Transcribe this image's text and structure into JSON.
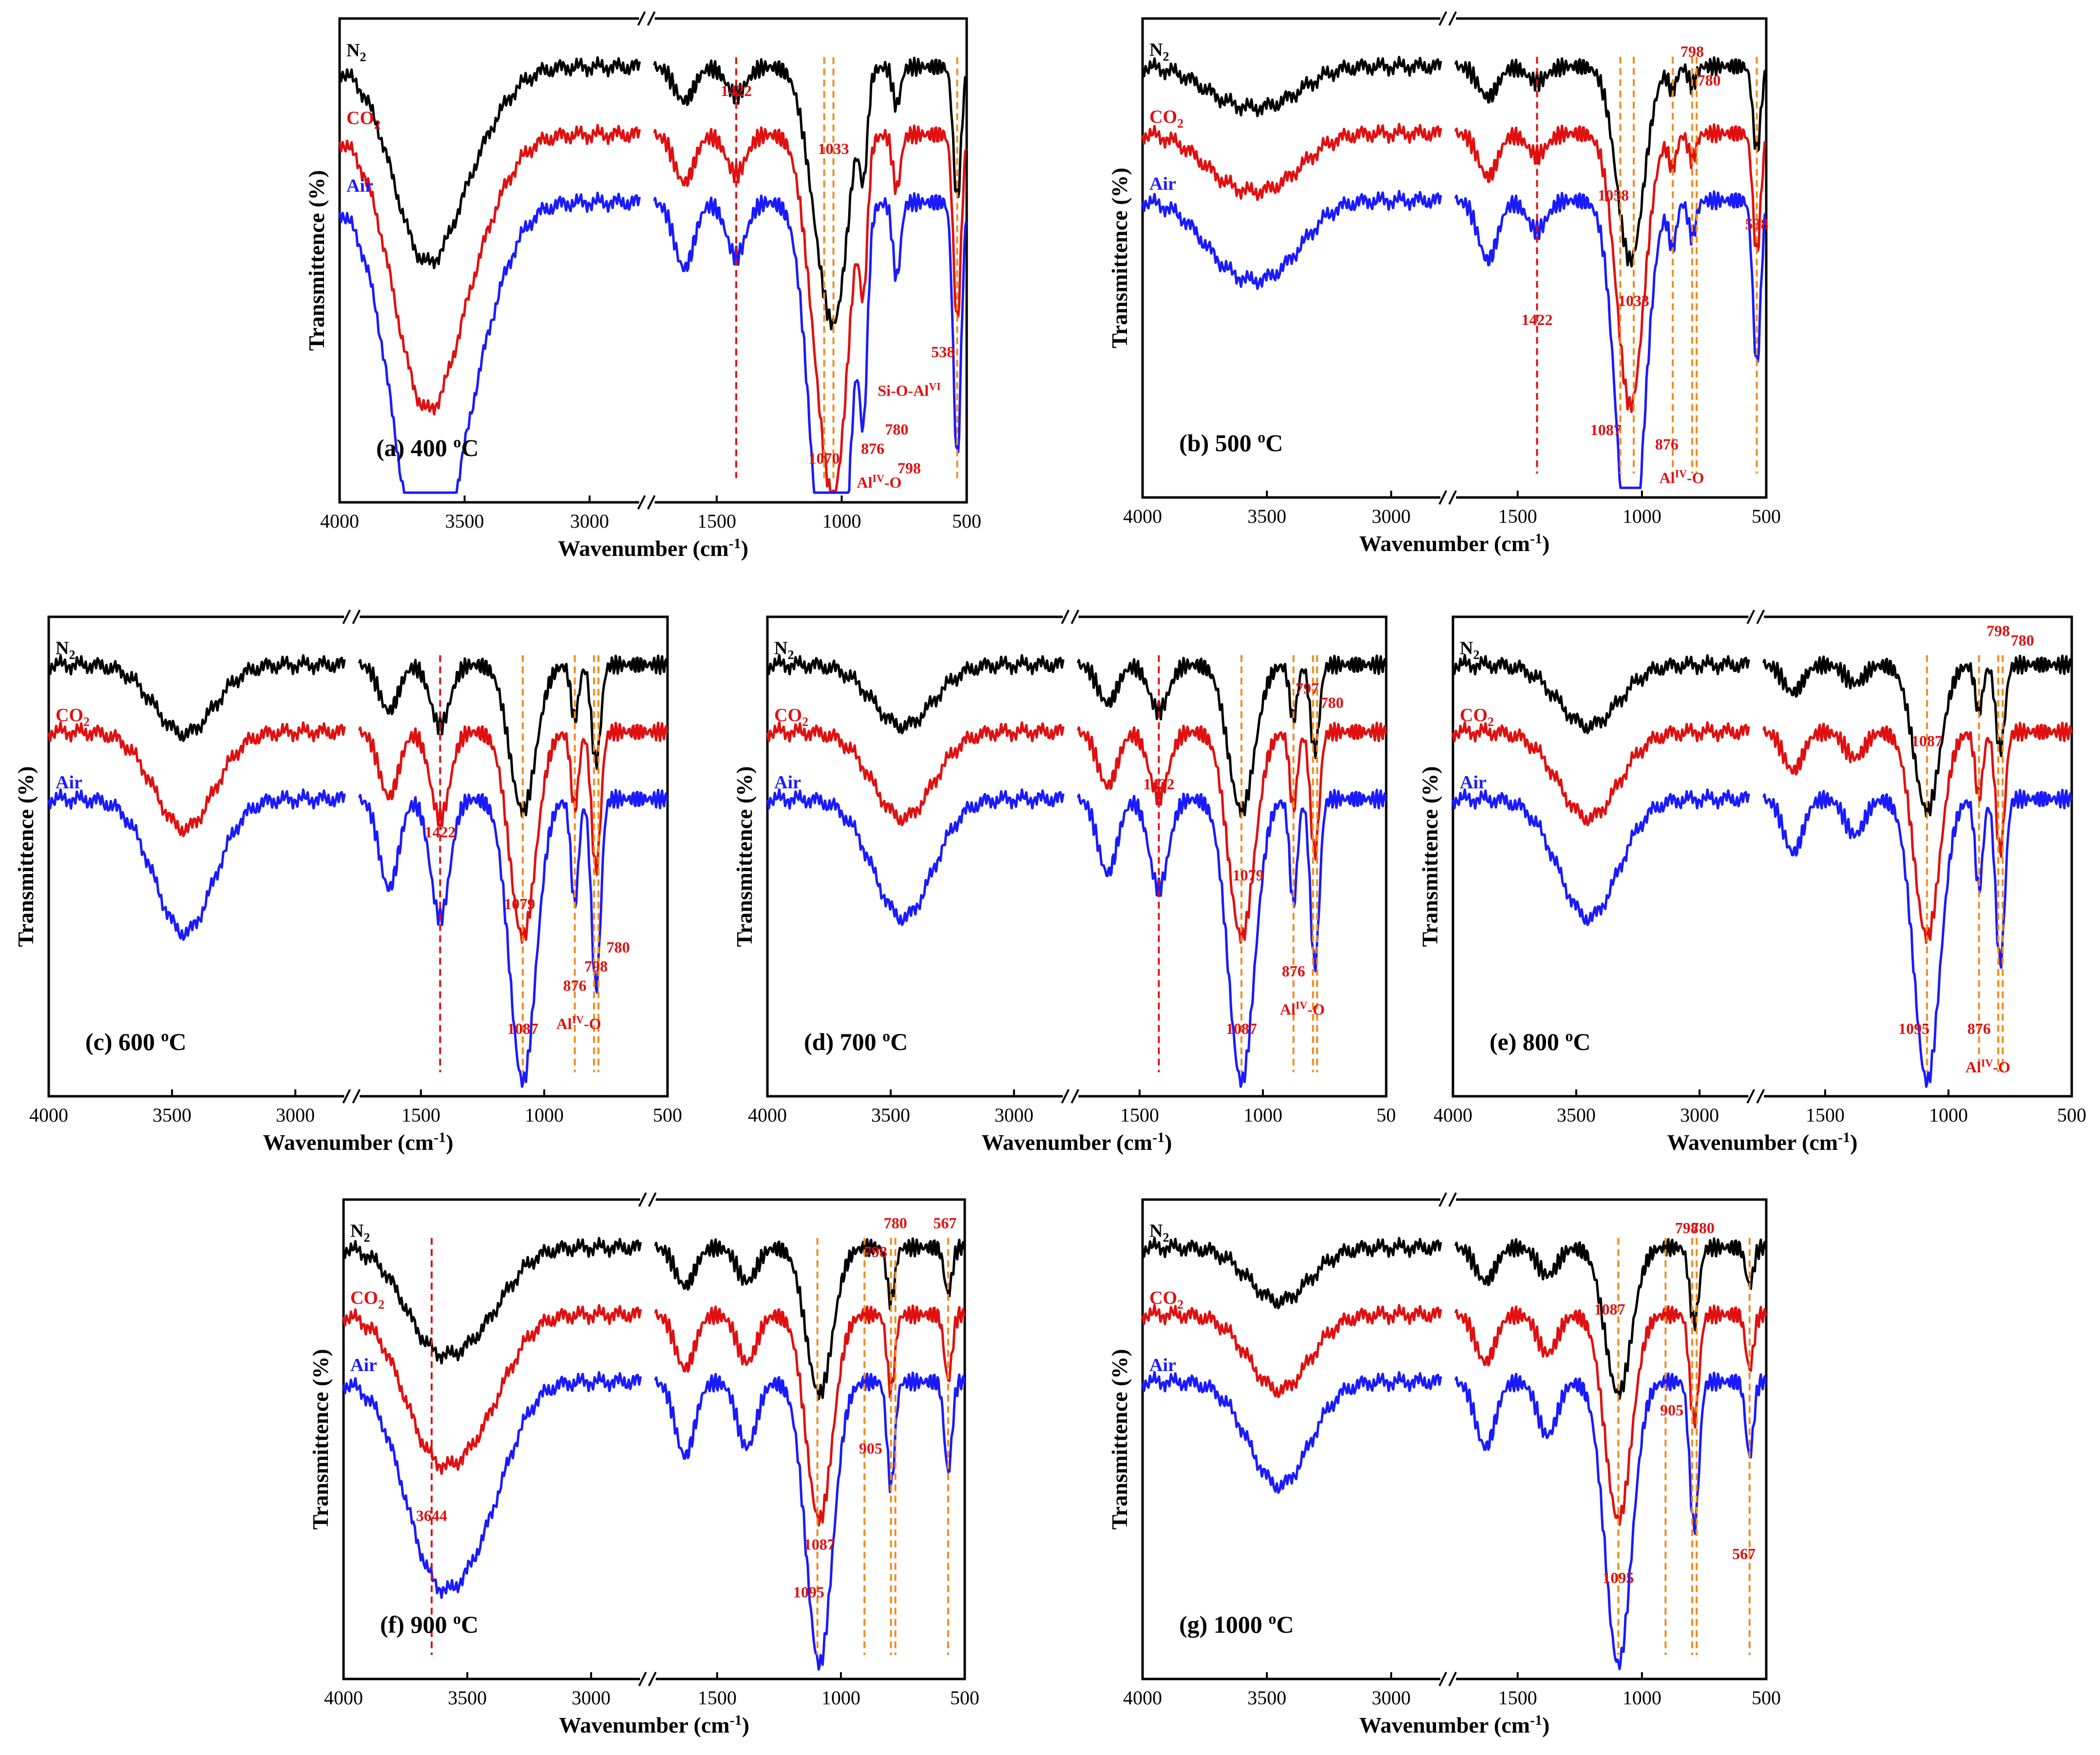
{
  "figure": {
    "axis_xlabel": "Wavenumber (cm",
    "axis_xlabel_sup": "-1",
    "axis_xlabel_close": ")",
    "axis_ylabel": "Transmittence (%)",
    "series_legend": [
      {
        "name": "N",
        "sub": "2",
        "color": "#000000"
      },
      {
        "name": "CO",
        "sub": "2",
        "color": "#e01010"
      },
      {
        "name": "Air",
        "sub": "",
        "color": "#1a1aff"
      }
    ]
  },
  "chart_data": [
    {
      "id": "a",
      "type": "line",
      "title": "(a) 400 ",
      "title_sup": "o",
      "title_tail": "C",
      "xlabel": "Wavenumber (cm-1)",
      "ylabel": "Transmittence (%)",
      "xlim": [
        4000,
        500
      ],
      "axis_break": [
        2800,
        1750
      ],
      "xticks": [
        "4000",
        "3500",
        "3000",
        "1500",
        "1000",
        "500"
      ],
      "series": [
        "N2",
        "CO2",
        "Air"
      ],
      "markers": [
        {
          "x": 1422,
          "color": "red"
        },
        {
          "x": 1033
        },
        {
          "x": 1070
        },
        {
          "x": 538
        }
      ],
      "annotations": [
        {
          "text": "1422",
          "x": 1422,
          "y": 0.84
        },
        {
          "text": "1033",
          "x": 1033,
          "y": 0.72
        },
        {
          "text": "1070",
          "x": 1070,
          "y": 0.08
        },
        {
          "text": "876",
          "x": 876,
          "y": 0.1
        },
        {
          "text": "780",
          "x": 780,
          "y": 0.14
        },
        {
          "text": "798",
          "x": 730,
          "y": 0.06
        },
        {
          "text": "538",
          "x": 595,
          "y": 0.3
        },
        {
          "text": "Si-O-Al",
          "sup": "VI",
          "x": 730,
          "y": 0.22
        },
        {
          "text": "Al",
          "sup": "IV",
          "tail": "-O",
          "x": 850,
          "y": 0.03
        }
      ]
    },
    {
      "id": "b",
      "type": "line",
      "title": "(b) 500 ",
      "title_sup": "o",
      "title_tail": "C",
      "xlabel": "Wavenumber (cm-1)",
      "ylabel": "Transmittence (%)",
      "xlim": [
        4000,
        500
      ],
      "axis_break": [
        2800,
        1750
      ],
      "xticks": [
        "4000",
        "3500",
        "3000",
        "1500",
        "1000",
        "500"
      ],
      "series": [
        "N2",
        "CO2",
        "Air"
      ],
      "markers": [
        {
          "x": 1422,
          "color": "red"
        },
        {
          "x": 1033
        },
        {
          "x": 1087
        },
        {
          "x": 876
        },
        {
          "x": 798
        },
        {
          "x": 780
        },
        {
          "x": 538
        }
      ],
      "annotations": [
        {
          "text": "1422",
          "x": 1422,
          "y": 0.36
        },
        {
          "text": "1058",
          "x": 1115,
          "y": 0.62
        },
        {
          "text": "1033",
          "x": 1033,
          "y": 0.4
        },
        {
          "text": "1087",
          "x": 1145,
          "y": 0.13
        },
        {
          "text": "798",
          "x": 798,
          "y": 0.92
        },
        {
          "text": "780",
          "x": 730,
          "y": 0.86
        },
        {
          "text": "538",
          "x": 538,
          "y": 0.56
        },
        {
          "text": "876",
          "x": 900,
          "y": 0.1
        },
        {
          "text": "Al",
          "sup": "IV",
          "tail": "-O",
          "x": 840,
          "y": 0.03
        }
      ]
    },
    {
      "id": "c",
      "type": "line",
      "title": "(c) 600 ",
      "title_sup": "o",
      "title_tail": "C",
      "xlabel": "Wavenumber (cm-1)",
      "ylabel": "Transmittence (%)",
      "xlim": [
        4000,
        500
      ],
      "axis_break": [
        2800,
        1750
      ],
      "xticks": [
        "4000",
        "3500",
        "3000",
        "1500",
        "1000",
        "500"
      ],
      "series": [
        "N2",
        "CO2",
        "Air"
      ],
      "markers": [
        {
          "x": 1422,
          "color": "red"
        },
        {
          "x": 1087
        },
        {
          "x": 876
        },
        {
          "x": 798
        },
        {
          "x": 780
        }
      ],
      "annotations": [
        {
          "text": "1422",
          "x": 1422,
          "y": 0.54
        },
        {
          "text": "1079",
          "x": 1100,
          "y": 0.39
        },
        {
          "text": "1087",
          "x": 1087,
          "y": 0.13
        },
        {
          "text": "876",
          "x": 876,
          "y": 0.22
        },
        {
          "text": "798",
          "x": 790,
          "y": 0.26
        },
        {
          "text": "780",
          "x": 700,
          "y": 0.3
        },
        {
          "text": "Al",
          "sup": "IV",
          "tail": "-O",
          "x": 860,
          "y": 0.14
        }
      ]
    },
    {
      "id": "d",
      "type": "line",
      "title": "(d) 700 ",
      "title_sup": "o",
      "title_tail": "C",
      "xlabel": "Wavenumber (cm-1)",
      "ylabel": "Transmittence (%)",
      "xlim": [
        4000,
        500
      ],
      "axis_break": [
        2800,
        1750
      ],
      "xticks": [
        "4000",
        "3500",
        "3000",
        "1500",
        "1000",
        "50"
      ],
      "series": [
        "N2",
        "CO2",
        "Air"
      ],
      "markers": [
        {
          "x": 1422,
          "color": "red"
        },
        {
          "x": 1087
        },
        {
          "x": 876
        },
        {
          "x": 797
        },
        {
          "x": 780
        }
      ],
      "annotations": [
        {
          "text": "1422",
          "x": 1422,
          "y": 0.64
        },
        {
          "text": "1079",
          "x": 1060,
          "y": 0.45
        },
        {
          "text": "1087",
          "x": 1087,
          "y": 0.13
        },
        {
          "text": "797",
          "x": 820,
          "y": 0.84
        },
        {
          "text": "780",
          "x": 720,
          "y": 0.81
        },
        {
          "text": "876",
          "x": 876,
          "y": 0.25
        },
        {
          "text": "Al",
          "sup": "IV",
          "tail": "-O",
          "x": 840,
          "y": 0.17
        }
      ]
    },
    {
      "id": "e",
      "type": "line",
      "title": "(e) 800 ",
      "title_sup": "o",
      "title_tail": "C",
      "xlabel": "Wavenumber (cm-1)",
      "ylabel": "Transmittence (%)",
      "xlim": [
        4000,
        500
      ],
      "axis_break": [
        2800,
        1750
      ],
      "xticks": [
        "4000",
        "3500",
        "3000",
        "1500",
        "1000",
        "500"
      ],
      "series": [
        "N2",
        "CO2",
        "Air"
      ],
      "markers": [
        {
          "x": 1087
        },
        {
          "x": 876
        },
        {
          "x": 798
        },
        {
          "x": 780
        }
      ],
      "annotations": [
        {
          "text": "1087",
          "x": 1087,
          "y": 0.73
        },
        {
          "text": "1095",
          "x": 1140,
          "y": 0.13
        },
        {
          "text": "876",
          "x": 876,
          "y": 0.13
        },
        {
          "text": "798",
          "x": 798,
          "y": 0.96
        },
        {
          "text": "780",
          "x": 700,
          "y": 0.94
        },
        {
          "text": "Al",
          "sup": "IV",
          "tail": "-O",
          "x": 840,
          "y": 0.05
        }
      ]
    },
    {
      "id": "f",
      "type": "line",
      "title": "(f) 900 ",
      "title_sup": "o",
      "title_tail": "C",
      "xlabel": "Wavenumber (cm-1)",
      "ylabel": "Transmittence (%)",
      "xlim": [
        4000,
        500
      ],
      "axis_break": [
        2800,
        1750
      ],
      "xticks": [
        "4000",
        "3500",
        "3000",
        "1500",
        "1000",
        "500"
      ],
      "series": [
        "N2",
        "CO2",
        "Air"
      ],
      "markers": [
        {
          "x": 3644,
          "color": "red"
        },
        {
          "x": 1095
        },
        {
          "x": 905
        },
        {
          "x": 798
        },
        {
          "x": 780
        },
        {
          "x": 567
        }
      ],
      "annotations": [
        {
          "text": "3644",
          "x": 3644,
          "y": 0.33
        },
        {
          "text": "905",
          "x": 880,
          "y": 0.47
        },
        {
          "text": "1087",
          "x": 1087,
          "y": 0.27
        },
        {
          "text": "1095",
          "x": 1130,
          "y": 0.17
        },
        {
          "text": "798",
          "x": 860,
          "y": 0.88
        },
        {
          "text": "780",
          "x": 780,
          "y": 0.94
        },
        {
          "text": "567",
          "x": 580,
          "y": 0.94
        }
      ]
    },
    {
      "id": "g",
      "type": "line",
      "title": "(g) 1000 ",
      "title_sup": "o",
      "title_tail": "C",
      "xlabel": "Wavenumber (cm-1)",
      "ylabel": "Transmittence (%)",
      "xlim": [
        4000,
        500
      ],
      "axis_break": [
        2800,
        1750
      ],
      "xticks": [
        "4000",
        "3500",
        "3000",
        "1500",
        "1000",
        "500"
      ],
      "series": [
        "N2",
        "CO2",
        "Air"
      ],
      "markers": [
        {
          "x": 1095
        },
        {
          "x": 905
        },
        {
          "x": 798
        },
        {
          "x": 780
        },
        {
          "x": 567
        }
      ],
      "annotations": [
        {
          "text": "1087",
          "x": 1130,
          "y": 0.76
        },
        {
          "text": "905",
          "x": 880,
          "y": 0.55
        },
        {
          "text": "1095",
          "x": 1095,
          "y": 0.2
        },
        {
          "text": "798",
          "x": 820,
          "y": 0.93
        },
        {
          "text": "780",
          "x": 755,
          "y": 0.93
        },
        {
          "text": "567",
          "x": 590,
          "y": 0.25
        }
      ]
    }
  ]
}
